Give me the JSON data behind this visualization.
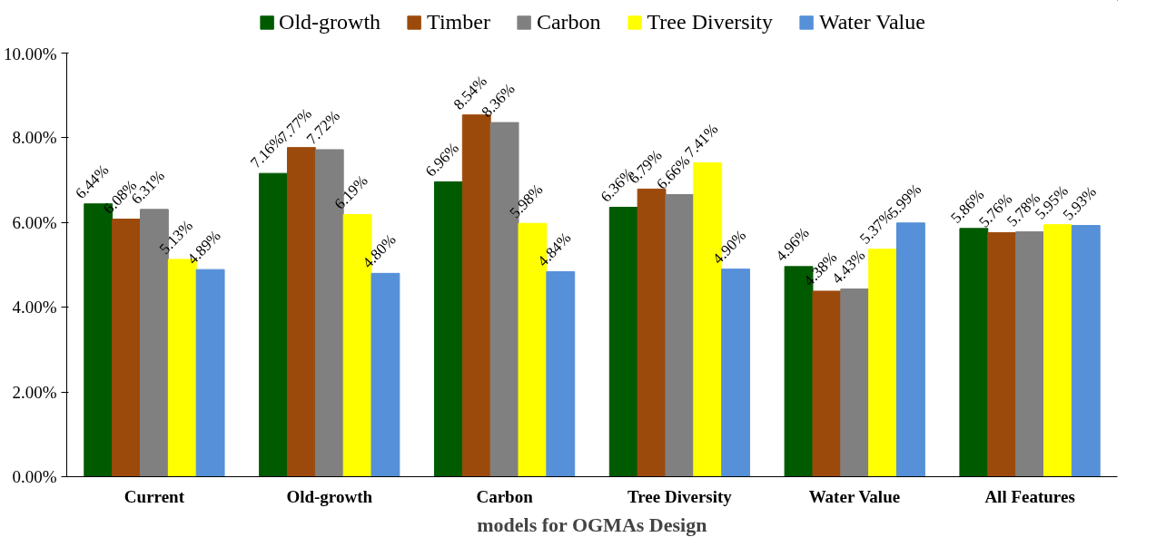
{
  "chart_data": {
    "type": "bar",
    "xlabel": "models for OGMAs Design",
    "categories": [
      "Current",
      "Old-growth",
      "Carbon",
      "Tree Diversity",
      "Water Value",
      "All Features"
    ],
    "series": [
      {
        "name": "Old-growth",
        "color": "#005a00",
        "values": [
          6.44,
          7.16,
          6.96,
          6.36,
          4.96,
          5.86
        ]
      },
      {
        "name": "Timber",
        "color": "#9c4a0c",
        "values": [
          6.08,
          7.77,
          8.54,
          6.79,
          4.38,
          5.76
        ]
      },
      {
        "name": "Carbon",
        "color": "#808080",
        "values": [
          6.31,
          7.72,
          8.36,
          6.66,
          4.43,
          5.78
        ]
      },
      {
        "name": "Tree Diversity",
        "color": "#ffff00",
        "values": [
          5.13,
          6.19,
          5.98,
          7.41,
          5.37,
          5.95
        ]
      },
      {
        "name": "Water Value",
        "color": "#5590d8",
        "values": [
          4.89,
          4.8,
          4.84,
          4.9,
          5.99,
          5.93
        ]
      }
    ],
    "value_labels": [
      [
        "6.44%",
        "7.16%",
        "6.96%",
        "6.36%",
        "4.96%",
        "5.86%"
      ],
      [
        "6.08%",
        "7.77%",
        "8.54%",
        "6.79%",
        "4.38%",
        "5.76%"
      ],
      [
        "6.31%",
        "7.72%",
        "8.36%",
        "6.66%",
        "4.43%",
        "5.78%"
      ],
      [
        "5.13%",
        "6.19%",
        "5.98%",
        "7.41%",
        "5.37%",
        "5.95%"
      ],
      [
        "4.89%",
        "4.80%",
        "4.84%",
        "4.90%",
        "5.99%",
        "5.93%"
      ]
    ],
    "ylim": [
      0,
      10
    ],
    "yticks": [
      {
        "value": 0,
        "label": "0.00%"
      },
      {
        "value": 2,
        "label": "2.00%"
      },
      {
        "value": 4,
        "label": "4.00%"
      },
      {
        "value": 6,
        "label": "6.00%"
      },
      {
        "value": 8,
        "label": "8.00%"
      },
      {
        "value": 10,
        "label": "10.00%"
      }
    ],
    "grid": false,
    "legend": "top"
  }
}
